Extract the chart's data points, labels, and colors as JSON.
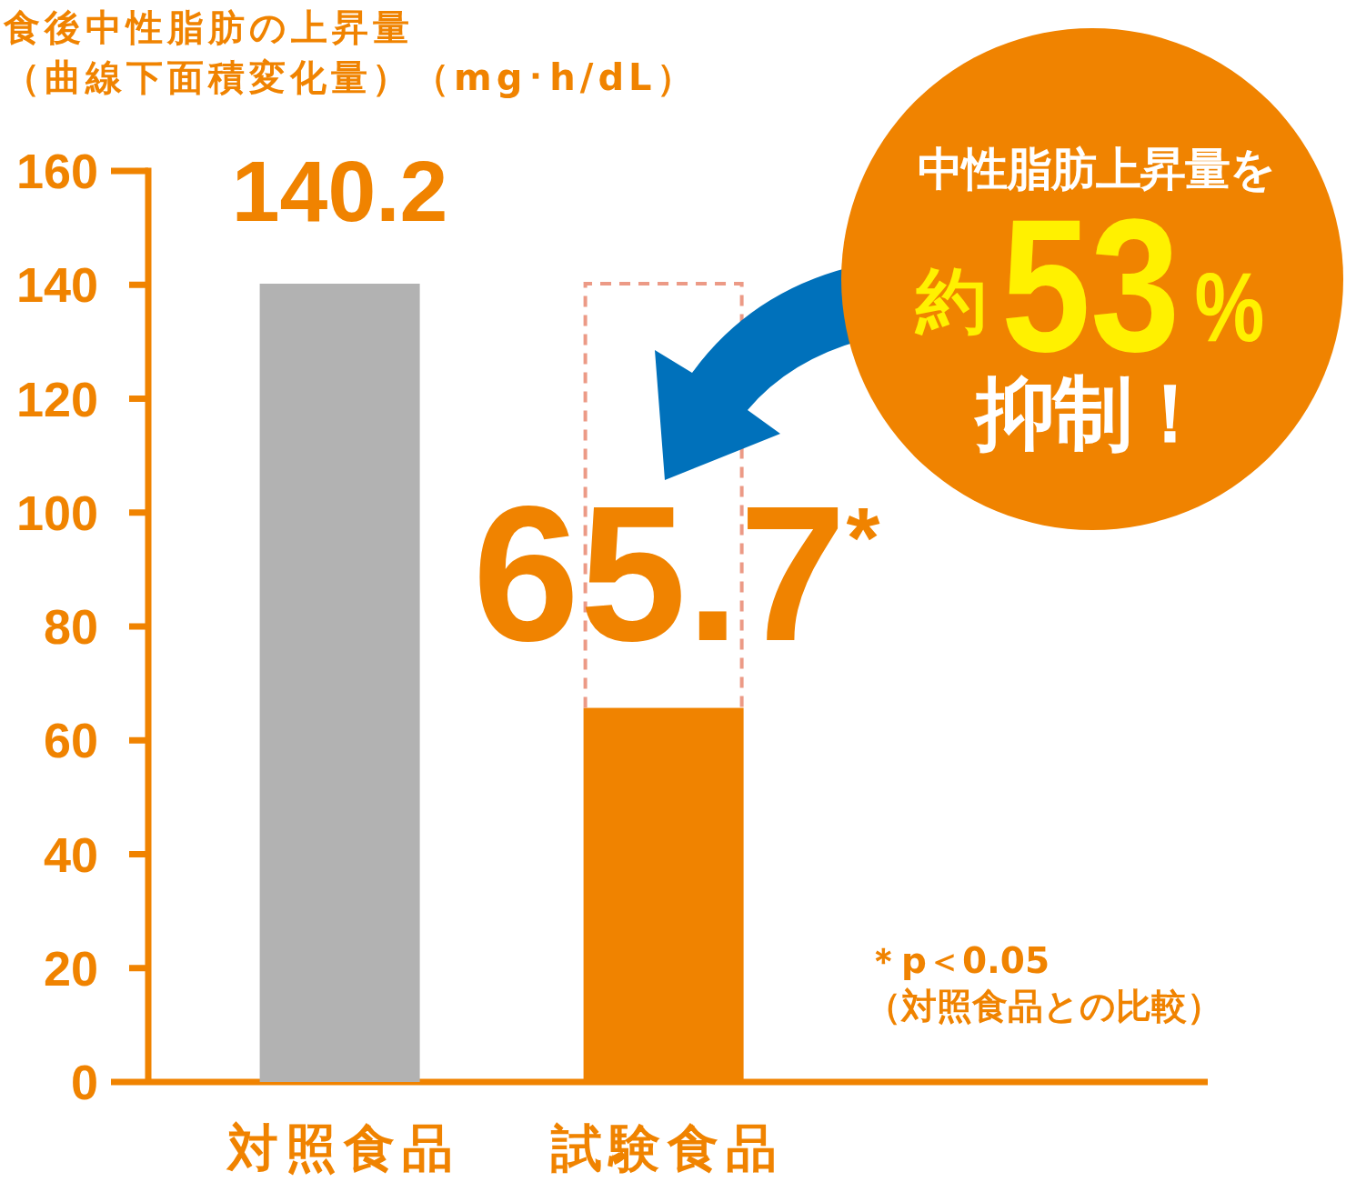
{
  "chart_data": {
    "type": "bar",
    "ylabel": "食後中性脂肪の上昇量（曲線下面積変化量）（mg･h/dL）",
    "categories": [
      "対照食品",
      "試験食品"
    ],
    "values": [
      140.2,
      65.7
    ],
    "colors": [
      "#b2b2b2",
      "#f08300"
    ],
    "value_labels": [
      "140.2",
      "65.7$^{*}$"
    ],
    "ylim": [
      0,
      160
    ],
    "yticks": [
      0,
      20,
      40,
      60,
      80,
      100,
      120,
      140,
      160
    ],
    "annotations": [
      "中性脂肪上昇量を",
      "約",
      "53",
      "%",
      "抑制！",
      "＊p＜0.05（対照食品との比較）"
    ]
  }
}
